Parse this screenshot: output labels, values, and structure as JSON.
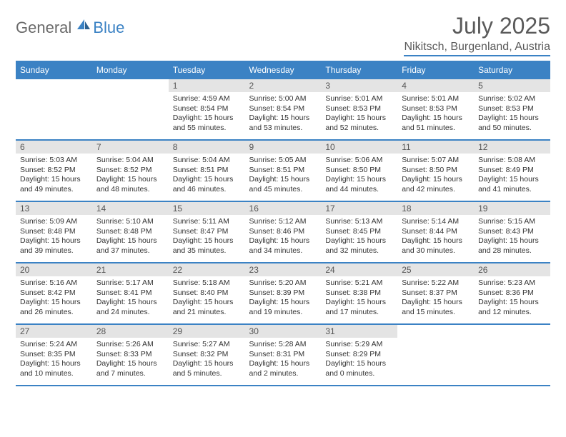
{
  "brand": {
    "part1": "General",
    "part2": "Blue"
  },
  "title": "July 2025",
  "location": "Nikitsch, Burgenland, Austria",
  "colors": {
    "accent": "#3b82c4",
    "header_band_bg": "#e4e4e4",
    "text": "#333333",
    "muted": "#5a5a5a"
  },
  "weekdays": [
    "Sunday",
    "Monday",
    "Tuesday",
    "Wednesday",
    "Thursday",
    "Friday",
    "Saturday"
  ],
  "weeks": [
    [
      {
        "n": "",
        "sr": "",
        "ss": "",
        "dl": ""
      },
      {
        "n": "",
        "sr": "",
        "ss": "",
        "dl": ""
      },
      {
        "n": "1",
        "sr": "Sunrise: 4:59 AM",
        "ss": "Sunset: 8:54 PM",
        "dl": "Daylight: 15 hours and 55 minutes."
      },
      {
        "n": "2",
        "sr": "Sunrise: 5:00 AM",
        "ss": "Sunset: 8:54 PM",
        "dl": "Daylight: 15 hours and 53 minutes."
      },
      {
        "n": "3",
        "sr": "Sunrise: 5:01 AM",
        "ss": "Sunset: 8:53 PM",
        "dl": "Daylight: 15 hours and 52 minutes."
      },
      {
        "n": "4",
        "sr": "Sunrise: 5:01 AM",
        "ss": "Sunset: 8:53 PM",
        "dl": "Daylight: 15 hours and 51 minutes."
      },
      {
        "n": "5",
        "sr": "Sunrise: 5:02 AM",
        "ss": "Sunset: 8:53 PM",
        "dl": "Daylight: 15 hours and 50 minutes."
      }
    ],
    [
      {
        "n": "6",
        "sr": "Sunrise: 5:03 AM",
        "ss": "Sunset: 8:52 PM",
        "dl": "Daylight: 15 hours and 49 minutes."
      },
      {
        "n": "7",
        "sr": "Sunrise: 5:04 AM",
        "ss": "Sunset: 8:52 PM",
        "dl": "Daylight: 15 hours and 48 minutes."
      },
      {
        "n": "8",
        "sr": "Sunrise: 5:04 AM",
        "ss": "Sunset: 8:51 PM",
        "dl": "Daylight: 15 hours and 46 minutes."
      },
      {
        "n": "9",
        "sr": "Sunrise: 5:05 AM",
        "ss": "Sunset: 8:51 PM",
        "dl": "Daylight: 15 hours and 45 minutes."
      },
      {
        "n": "10",
        "sr": "Sunrise: 5:06 AM",
        "ss": "Sunset: 8:50 PM",
        "dl": "Daylight: 15 hours and 44 minutes."
      },
      {
        "n": "11",
        "sr": "Sunrise: 5:07 AM",
        "ss": "Sunset: 8:50 PM",
        "dl": "Daylight: 15 hours and 42 minutes."
      },
      {
        "n": "12",
        "sr": "Sunrise: 5:08 AM",
        "ss": "Sunset: 8:49 PM",
        "dl": "Daylight: 15 hours and 41 minutes."
      }
    ],
    [
      {
        "n": "13",
        "sr": "Sunrise: 5:09 AM",
        "ss": "Sunset: 8:48 PM",
        "dl": "Daylight: 15 hours and 39 minutes."
      },
      {
        "n": "14",
        "sr": "Sunrise: 5:10 AM",
        "ss": "Sunset: 8:48 PM",
        "dl": "Daylight: 15 hours and 37 minutes."
      },
      {
        "n": "15",
        "sr": "Sunrise: 5:11 AM",
        "ss": "Sunset: 8:47 PM",
        "dl": "Daylight: 15 hours and 35 minutes."
      },
      {
        "n": "16",
        "sr": "Sunrise: 5:12 AM",
        "ss": "Sunset: 8:46 PM",
        "dl": "Daylight: 15 hours and 34 minutes."
      },
      {
        "n": "17",
        "sr": "Sunrise: 5:13 AM",
        "ss": "Sunset: 8:45 PM",
        "dl": "Daylight: 15 hours and 32 minutes."
      },
      {
        "n": "18",
        "sr": "Sunrise: 5:14 AM",
        "ss": "Sunset: 8:44 PM",
        "dl": "Daylight: 15 hours and 30 minutes."
      },
      {
        "n": "19",
        "sr": "Sunrise: 5:15 AM",
        "ss": "Sunset: 8:43 PM",
        "dl": "Daylight: 15 hours and 28 minutes."
      }
    ],
    [
      {
        "n": "20",
        "sr": "Sunrise: 5:16 AM",
        "ss": "Sunset: 8:42 PM",
        "dl": "Daylight: 15 hours and 26 minutes."
      },
      {
        "n": "21",
        "sr": "Sunrise: 5:17 AM",
        "ss": "Sunset: 8:41 PM",
        "dl": "Daylight: 15 hours and 24 minutes."
      },
      {
        "n": "22",
        "sr": "Sunrise: 5:18 AM",
        "ss": "Sunset: 8:40 PM",
        "dl": "Daylight: 15 hours and 21 minutes."
      },
      {
        "n": "23",
        "sr": "Sunrise: 5:20 AM",
        "ss": "Sunset: 8:39 PM",
        "dl": "Daylight: 15 hours and 19 minutes."
      },
      {
        "n": "24",
        "sr": "Sunrise: 5:21 AM",
        "ss": "Sunset: 8:38 PM",
        "dl": "Daylight: 15 hours and 17 minutes."
      },
      {
        "n": "25",
        "sr": "Sunrise: 5:22 AM",
        "ss": "Sunset: 8:37 PM",
        "dl": "Daylight: 15 hours and 15 minutes."
      },
      {
        "n": "26",
        "sr": "Sunrise: 5:23 AM",
        "ss": "Sunset: 8:36 PM",
        "dl": "Daylight: 15 hours and 12 minutes."
      }
    ],
    [
      {
        "n": "27",
        "sr": "Sunrise: 5:24 AM",
        "ss": "Sunset: 8:35 PM",
        "dl": "Daylight: 15 hours and 10 minutes."
      },
      {
        "n": "28",
        "sr": "Sunrise: 5:26 AM",
        "ss": "Sunset: 8:33 PM",
        "dl": "Daylight: 15 hours and 7 minutes."
      },
      {
        "n": "29",
        "sr": "Sunrise: 5:27 AM",
        "ss": "Sunset: 8:32 PM",
        "dl": "Daylight: 15 hours and 5 minutes."
      },
      {
        "n": "30",
        "sr": "Sunrise: 5:28 AM",
        "ss": "Sunset: 8:31 PM",
        "dl": "Daylight: 15 hours and 2 minutes."
      },
      {
        "n": "31",
        "sr": "Sunrise: 5:29 AM",
        "ss": "Sunset: 8:29 PM",
        "dl": "Daylight: 15 hours and 0 minutes."
      },
      {
        "n": "",
        "sr": "",
        "ss": "",
        "dl": ""
      },
      {
        "n": "",
        "sr": "",
        "ss": "",
        "dl": ""
      }
    ]
  ]
}
